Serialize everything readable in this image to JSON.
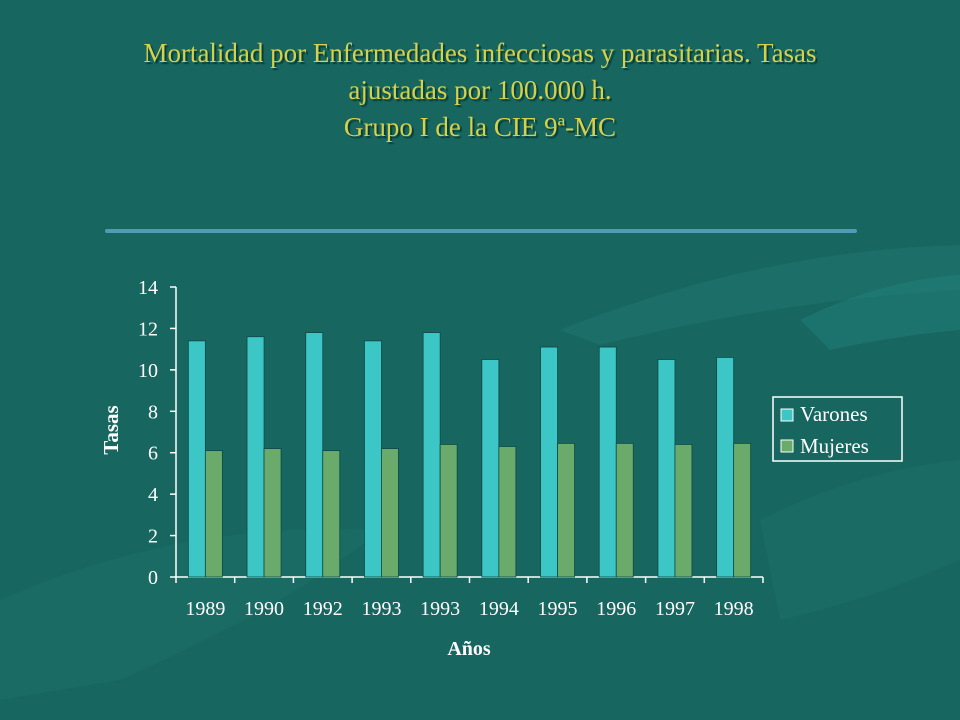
{
  "title": {
    "line1": "Mortalidad por Enfermedades infecciosas y parasitarias. Tasas",
    "line2": "ajustadas por 100.000 h.",
    "line3": "Grupo I de la CIE 9ª-MC"
  },
  "colors": {
    "background": "#176660",
    "title": "#d6d14a",
    "varones": "#3cc6c6",
    "mujeres": "#6aaa6a",
    "axis": "#ffffff"
  },
  "chart_data": {
    "type": "bar",
    "categories": [
      "1989",
      "1990",
      "1992",
      "1993",
      "1993",
      "1994",
      "1995",
      "1996",
      "1997",
      "1998"
    ],
    "series": [
      {
        "name": "Varones",
        "color": "#3cc6c6",
        "values": [
          11.4,
          11.6,
          11.8,
          11.4,
          11.8,
          10.5,
          11.1,
          11.1,
          10.5,
          10.6
        ]
      },
      {
        "name": "Mujeres",
        "color": "#6aaa6a",
        "values": [
          6.1,
          6.2,
          6.1,
          6.2,
          6.4,
          6.3,
          6.45,
          6.45,
          6.4,
          6.45
        ]
      }
    ],
    "yticks": [
      "0",
      "2",
      "4",
      "6",
      "8",
      "10",
      "12",
      "14"
    ],
    "ylim": [
      0,
      14
    ],
    "xlabel": "Años",
    "ylabel": "Tasas",
    "legend_position": "right",
    "grid": false
  }
}
